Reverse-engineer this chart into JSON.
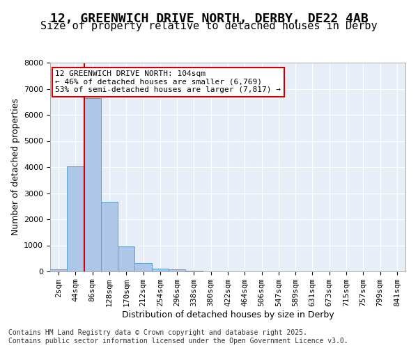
{
  "title_line1": "12, GREENWICH DRIVE NORTH, DERBY, DE22 4AB",
  "title_line2": "Size of property relative to detached houses in Derby",
  "xlabel": "Distribution of detached houses by size in Derby",
  "ylabel": "Number of detached properties",
  "bar_values": [
    75,
    4020,
    6630,
    2680,
    970,
    320,
    120,
    90,
    30,
    0,
    0,
    0,
    0,
    0,
    0,
    0,
    0,
    0,
    0,
    0,
    0
  ],
  "bar_labels": [
    "2sqm",
    "44sqm",
    "86sqm",
    "128sqm",
    "170sqm",
    "212sqm",
    "254sqm",
    "296sqm",
    "338sqm",
    "380sqm",
    "422sqm",
    "464sqm",
    "506sqm",
    "547sqm",
    "589sqm",
    "631sqm",
    "673sqm",
    "715sqm",
    "757sqm",
    "799sqm",
    "841sqm"
  ],
  "bar_color": "#aec6e8",
  "bar_edge_color": "#5a9fd4",
  "ylim": [
    0,
    8000
  ],
  "yticks": [
    0,
    1000,
    2000,
    3000,
    4000,
    5000,
    6000,
    7000,
    8000
  ],
  "vline_x": 2,
  "vline_color": "#cc0000",
  "annotation_text": "12 GREENWICH DRIVE NORTH: 104sqm\n← 46% of detached houses are smaller (6,769)\n53% of semi-detached houses are larger (7,817) →",
  "annotation_box_color": "#cc0000",
  "bg_color": "#e8eef8",
  "grid_color": "#ffffff",
  "footer_text": "Contains HM Land Registry data © Crown copyright and database right 2025.\nContains public sector information licensed under the Open Government Licence v3.0.",
  "title_fontsize": 13,
  "subtitle_fontsize": 11,
  "axis_label_fontsize": 9,
  "tick_fontsize": 8,
  "annotation_fontsize": 8,
  "footer_fontsize": 7
}
